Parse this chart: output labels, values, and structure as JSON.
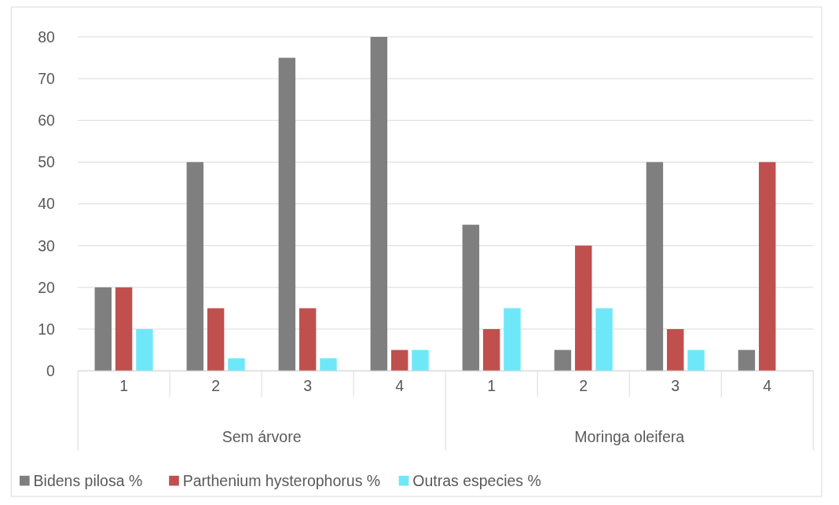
{
  "chart_data": {
    "type": "bar",
    "categories": [
      "1",
      "2",
      "3",
      "4",
      "1",
      "2",
      "3",
      "4"
    ],
    "series": [
      {
        "name": "Bidens pilosa %",
        "color": "#7f7f7f",
        "values": [
          20,
          50,
          75,
          80,
          35,
          5,
          50,
          5
        ]
      },
      {
        "name": "Parthenium hysterophorus %",
        "color": "#c0504d",
        "values": [
          20,
          15,
          15,
          5,
          10,
          30,
          10,
          50
        ]
      },
      {
        "name": "Outras especies %",
        "color": "#6ee8f8",
        "values": [
          10,
          3,
          3,
          5,
          15,
          15,
          5,
          0
        ]
      }
    ],
    "annotations": [
      "Sem árvore",
      "Moringa oleifera"
    ],
    "ylim": [
      0,
      80
    ],
    "yticks": [
      0,
      10,
      20,
      30,
      40,
      50,
      60,
      70,
      80
    ],
    "grid": "y",
    "legend": "bottom"
  }
}
